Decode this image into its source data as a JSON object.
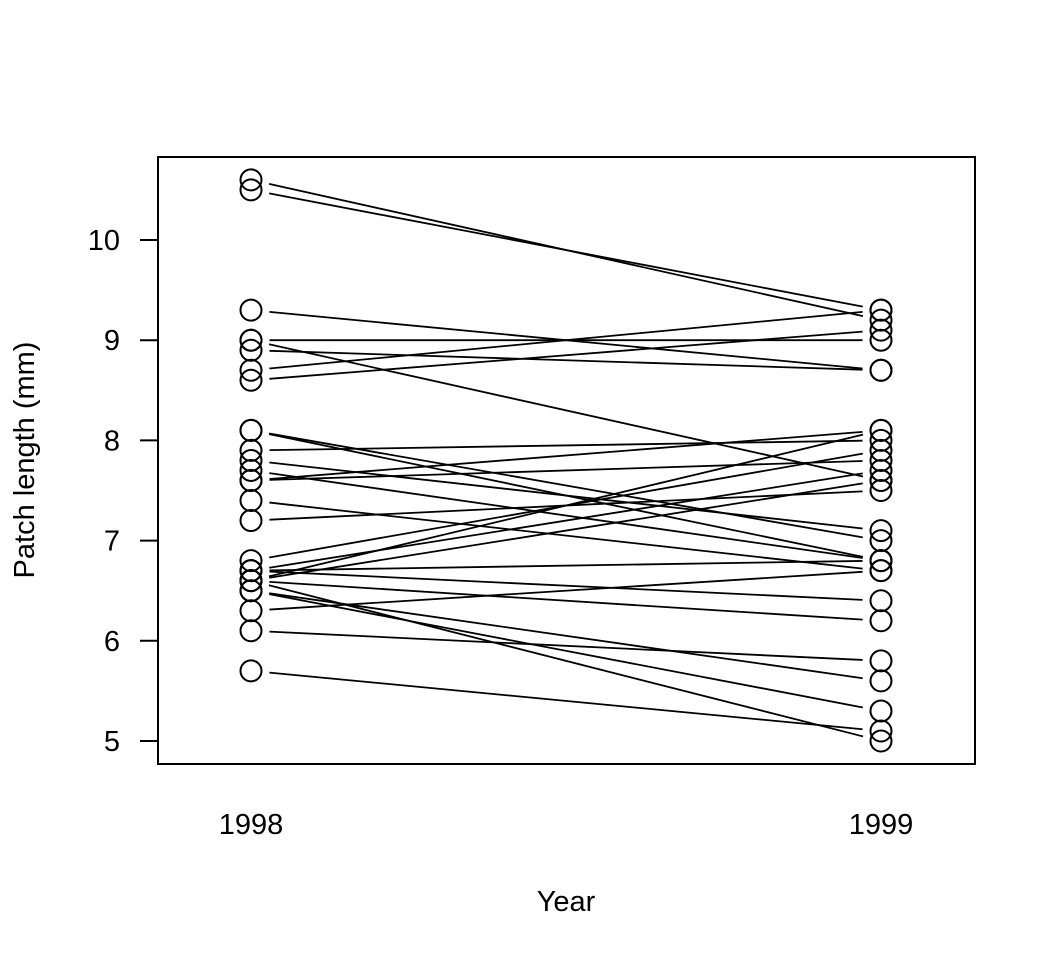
{
  "chart_data": {
    "type": "line",
    "title": "",
    "xlabel": "Year",
    "ylabel": "Patch length (mm)",
    "categories": [
      "1998",
      "1999"
    ],
    "ylim": [
      4.8,
      10.85
    ],
    "yticks": [
      5,
      6,
      7,
      8,
      9,
      10
    ],
    "grid": false,
    "legend": "none",
    "line_color": "#000000",
    "pairs": [
      [
        10.6,
        9.2
      ],
      [
        10.5,
        9.3
      ],
      [
        9.3,
        8.7
      ],
      [
        9.0,
        9.0
      ],
      [
        9.0,
        7.6
      ],
      [
        8.9,
        8.7
      ],
      [
        8.7,
        9.3
      ],
      [
        8.6,
        9.1
      ],
      [
        8.1,
        7.0
      ],
      [
        8.1,
        6.8
      ],
      [
        7.9,
        8.0
      ],
      [
        7.8,
        7.1
      ],
      [
        7.7,
        6.8
      ],
      [
        7.6,
        8.1
      ],
      [
        7.6,
        7.8
      ],
      [
        7.4,
        6.7
      ],
      [
        7.2,
        7.5
      ],
      [
        6.8,
        7.9
      ],
      [
        6.7,
        7.7
      ],
      [
        6.7,
        6.8
      ],
      [
        6.6,
        8.1
      ],
      [
        6.6,
        7.6
      ],
      [
        6.7,
        6.4
      ],
      [
        6.6,
        6.2
      ],
      [
        6.6,
        5.0
      ],
      [
        6.5,
        5.3
      ],
      [
        6.5,
        5.6
      ],
      [
        6.3,
        6.7
      ],
      [
        6.1,
        5.8
      ],
      [
        5.7,
        5.1
      ]
    ]
  }
}
